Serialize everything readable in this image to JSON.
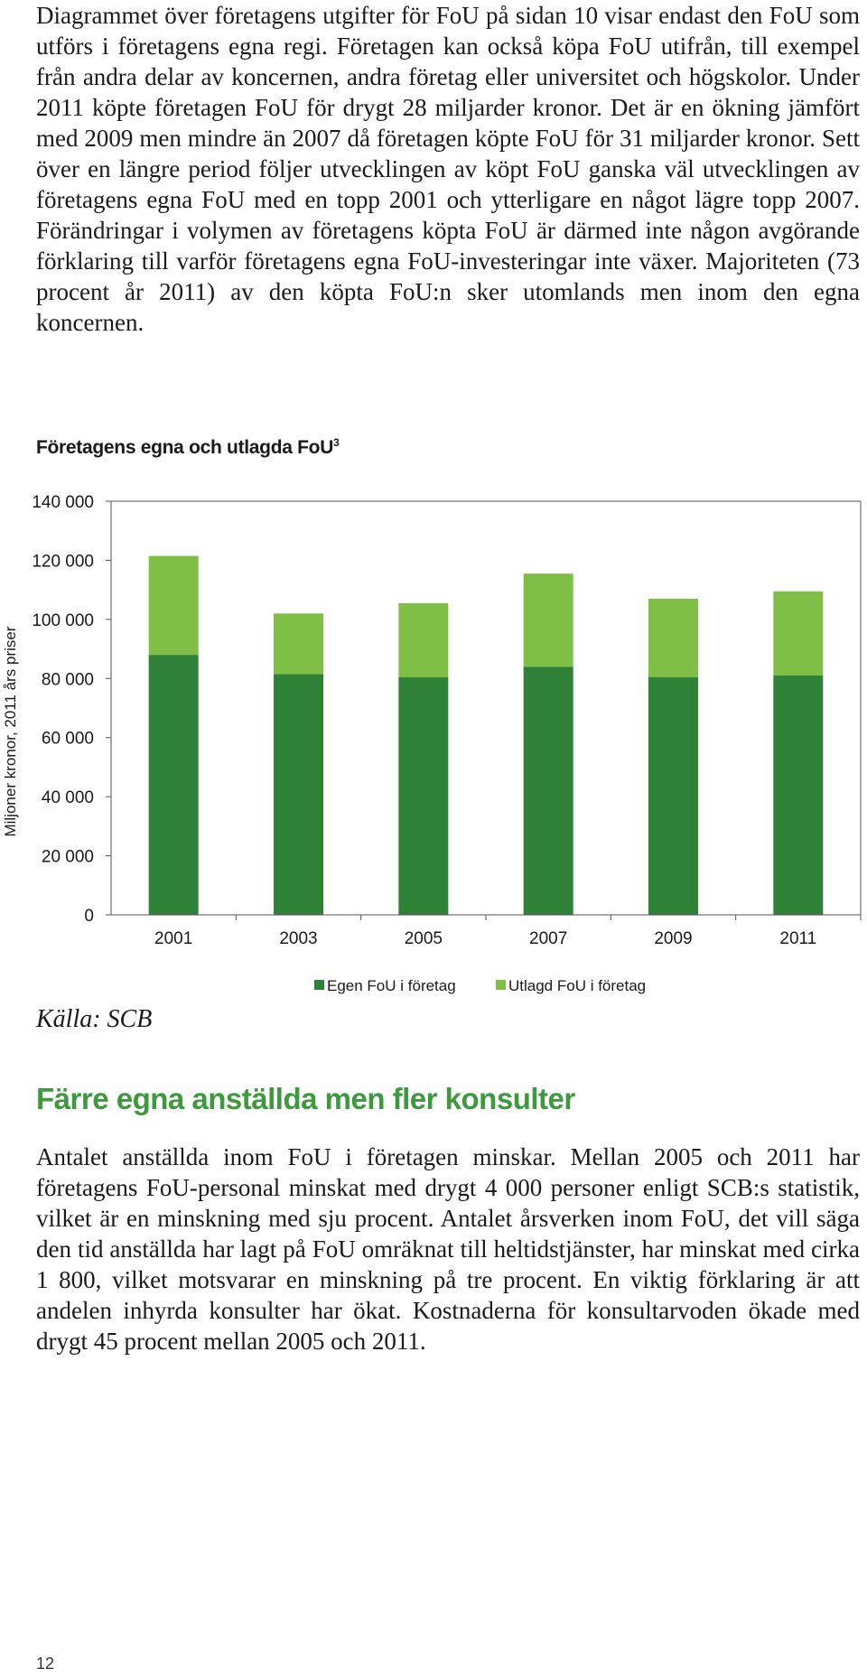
{
  "paragraph_1": "Diagrammet över företagens utgifter för FoU på sidan 10 visar endast den FoU som utförs i företagens egna regi. Företagen kan också köpa FoU utifrån, till exempel från andra delar av koncernen, andra företag eller universitet och högskolor. Under 2011 köpte företagen FoU för drygt 28 miljarder kronor. Det är en ökning jämfört med 2009 men mindre än 2007 då företagen köpte FoU för 31 miljarder kronor. Sett över en längre period följer utvecklingen av köpt FoU ganska väl utvecklingen av företagens egna FoU med en topp 2001 och ytterligare en något lägre topp 2007. Förändringar i volymen av företagens köpta FoU är därmed inte någon avgörande förklaring till varför företagens egna FoU-investeringar inte växer. Majoriteten (73 procent år 2011) av den köpta FoU:n sker utomlands men inom den egna koncernen.",
  "chart_title": "Företagens egna och utlagda FoU",
  "chart_title_footnote": "3",
  "chart_data": {
    "type": "bar",
    "stacked": true,
    "categories": [
      "2001",
      "2003",
      "2005",
      "2007",
      "2009",
      "2011"
    ],
    "series": [
      {
        "name": "Egen FoU i företag",
        "values": [
          88000,
          81500,
          80500,
          84000,
          80500,
          81000
        ],
        "color": "#2e8137"
      },
      {
        "name": "Utlagd FoU i företag",
        "values": [
          33500,
          20500,
          25000,
          31500,
          26500,
          28500
        ],
        "color": "#7fbf45"
      }
    ],
    "ylabel": "Miljoner kronor, 2011 års priser",
    "ylim": [
      0,
      140000
    ],
    "yticks": [
      0,
      20000,
      40000,
      60000,
      80000,
      100000,
      120000,
      140000
    ],
    "ytick_labels": [
      "0",
      "20 000",
      "40 000",
      "60 000",
      "80 000",
      "100 000",
      "120 000",
      "140 000"
    ],
    "grid": false,
    "legend_position": "bottom"
  },
  "source": "Källa: SCB",
  "section_heading": "Färre egna anställda men fler konsulter",
  "paragraph_2": "Antalet anställda inom FoU i företagen minskar. Mellan 2005 och 2011 har företagens FoU-personal minskat med drygt 4 000 personer enligt SCB:s statistik, vilket är en minskning med sju procent. Antalet årsverken inom FoU, det vill säga den tid anställda har lagt på FoU omräknat till heltidstjänster, har minskat med cirka 1 800, vilket motsvarar en minskning på tre procent. En viktig förklaring är att andelen inhyrda konsulter har ökat. Kostnaderna för konsultarvoden ökade med drygt 45 procent mellan 2005 och 2011.",
  "page_number": "12"
}
